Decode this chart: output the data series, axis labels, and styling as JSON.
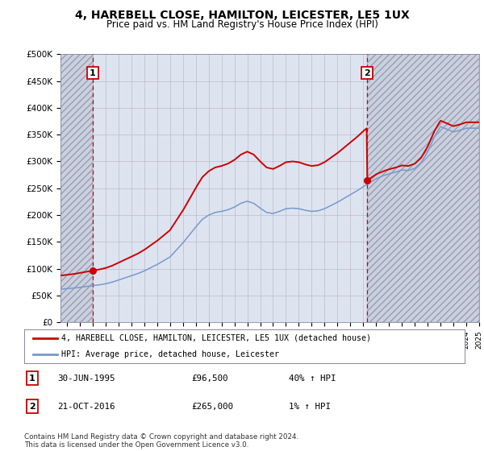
{
  "title": "4, HAREBELL CLOSE, HAMILTON, LEICESTER, LE5 1UX",
  "subtitle": "Price paid vs. HM Land Registry's House Price Index (HPI)",
  "ylabel_ticks": [
    "£0",
    "£50K",
    "£100K",
    "£150K",
    "£200K",
    "£250K",
    "£300K",
    "£350K",
    "£400K",
    "£450K",
    "£500K"
  ],
  "ylim": [
    0,
    500000
  ],
  "xlim_start": 1993.0,
  "xlim_end": 2025.5,
  "sale1_date": 1995.5,
  "sale1_price": 96500,
  "sale2_date": 2016.8,
  "sale2_price": 265000,
  "legend_line1": "4, HAREBELL CLOSE, HAMILTON, LEICESTER, LE5 1UX (detached house)",
  "legend_line2": "HPI: Average price, detached house, Leicester",
  "annotation1_box": "1",
  "annotation1_date": "30-JUN-1995",
  "annotation1_price": "£96,500",
  "annotation1_hpi": "40% ↑ HPI",
  "annotation2_box": "2",
  "annotation2_date": "21-OCT-2016",
  "annotation2_price": "£265,000",
  "annotation2_hpi": "1% ↑ HPI",
  "footer": "Contains HM Land Registry data © Crown copyright and database right 2024.\nThis data is licensed under the Open Government Licence v3.0.",
  "red_color": "#cc0000",
  "blue_color": "#7799cc",
  "grid_color": "#bbbbcc",
  "background_plot": "#dde4f0",
  "background_hatch": "#c8d0e0",
  "hatch_alpha": 0.9,
  "title_fontsize": 10,
  "subtitle_fontsize": 8.5
}
